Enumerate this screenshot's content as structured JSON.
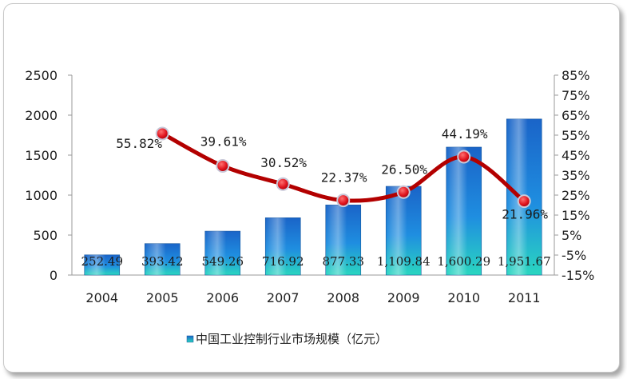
{
  "chart_data": {
    "type": "bar",
    "categories": [
      "2004",
      "2005",
      "2006",
      "2007",
      "2008",
      "2009",
      "2010",
      "2011"
    ],
    "series": [
      {
        "name": "中国工业控制行业市场规模（亿元）",
        "type": "bar",
        "axis": "left",
        "values": [
          252.49,
          393.42,
          549.26,
          716.92,
          877.33,
          1109.84,
          1600.29,
          1951.67
        ],
        "labels": [
          "252.49",
          "393.42",
          "549.26",
          "716.92",
          "877.33",
          "1,109.84",
          "1,600.29",
          "1,951.67"
        ]
      },
      {
        "type": "line",
        "axis": "right",
        "x": [
          "2005",
          "2006",
          "2007",
          "2008",
          "2009",
          "2010",
          "2011"
        ],
        "values": [
          55.82,
          39.61,
          30.52,
          22.37,
          26.5,
          44.19,
          21.96
        ],
        "labels": [
          "55.82%",
          "39.61%",
          "30.52%",
          "22.37%",
          "26.50%",
          "44.19%",
          "21.96%"
        ]
      }
    ],
    "y_left": {
      "range": [
        0,
        2500
      ],
      "ticks": [
        "0",
        "500",
        "1000",
        "1500",
        "2000",
        "2500"
      ]
    },
    "y_right": {
      "range": [
        -15,
        85
      ],
      "ticks": [
        "-15%",
        "-5%",
        "5%",
        "15%",
        "25%",
        "35%",
        "45%",
        "55%",
        "65%",
        "75%",
        "85%"
      ]
    },
    "grid": false,
    "legend": {
      "position": "bottom"
    },
    "colors": {
      "bar_top": "#1a64c8",
      "bar_bottom": "#29d2c0",
      "line": "#b30000",
      "marker": "#e0141e"
    }
  }
}
